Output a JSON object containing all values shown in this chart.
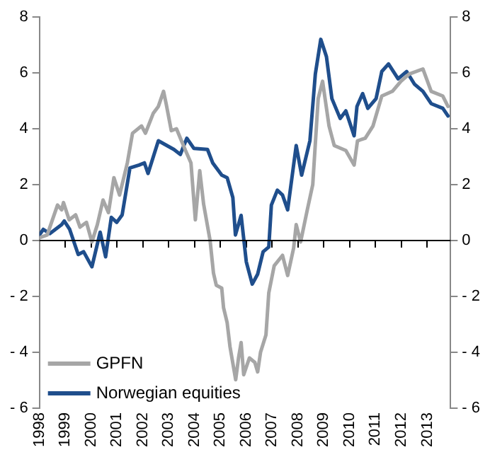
{
  "chart_data": {
    "type": "line",
    "grid": false,
    "legend": "bottom left",
    "marker": "none",
    "line_style": "solid",
    "ref_lines": [
      {
        "axis": "y",
        "value": 0,
        "color": "#000000"
      }
    ],
    "xlim": [
      1998,
      2013.9
    ],
    "xticks": [
      1998,
      1999,
      2000,
      2001,
      2002,
      2003,
      2004,
      2005,
      2006,
      2007,
      2008,
      2009,
      2010,
      2011,
      2012,
      2013
    ],
    "ylim": [
      -6,
      8
    ],
    "yticks": [
      {
        "value": -6,
        "label": "- 6"
      },
      {
        "value": -4,
        "label": "- 4"
      },
      {
        "value": -2,
        "label": "- 2"
      },
      0,
      2,
      4,
      6,
      8
    ],
    "y2lim": [
      -6,
      8
    ],
    "y2ticks": [
      {
        "value": -6,
        "label": "- 6"
      },
      {
        "value": -4,
        "label": "- 4"
      },
      {
        "value": -2,
        "label": "- 2"
      },
      0,
      2,
      4,
      6,
      8
    ],
    "series": [
      {
        "name": "GPFN",
        "color": "#a6a6a6",
        "x": [
          1998.0,
          1998.3,
          1998.7,
          1998.86,
          1998.93,
          1999.15,
          1999.4,
          1999.57,
          1999.82,
          2000.03,
          2000.24,
          2000.46,
          2000.67,
          2000.88,
          2001.1,
          2001.4,
          2001.6,
          2001.95,
          2002.1,
          2002.4,
          2002.6,
          2002.8,
          2002.9,
          2003.1,
          2003.3,
          2003.65,
          2003.86,
          2004.03,
          2004.2,
          2004.35,
          2004.6,
          2004.73,
          2004.84,
          2005.05,
          2005.12,
          2005.26,
          2005.37,
          2005.59,
          2005.7,
          2005.8,
          2005.9,
          2006.12,
          2006.33,
          2006.44,
          2006.55,
          2006.76,
          2006.87,
          2007.08,
          2007.4,
          2007.6,
          2007.83,
          2007.93,
          2008.1,
          2008.36,
          2008.57,
          2008.78,
          2008.95,
          2009.2,
          2009.4,
          2009.85,
          2010.17,
          2010.3,
          2010.6,
          2010.9,
          2011.24,
          2011.65,
          2011.98,
          2012.3,
          2012.83,
          2013.15,
          2013.6,
          2013.8
        ],
        "values": [
          0.1,
          0.2,
          1.27,
          1.1,
          1.36,
          0.74,
          0.92,
          0.48,
          0.65,
          -0.05,
          0.57,
          1.45,
          1.0,
          2.25,
          1.63,
          2.78,
          3.84,
          4.1,
          3.84,
          4.55,
          4.8,
          5.34,
          4.9,
          3.93,
          4.0,
          3.22,
          2.78,
          0.74,
          2.5,
          1.3,
          0.0,
          -1.16,
          -1.6,
          -1.7,
          -2.4,
          -2.94,
          -3.8,
          -4.98,
          -4.2,
          -3.65,
          -4.8,
          -4.2,
          -4.36,
          -4.7,
          -4.0,
          -3.38,
          -1.87,
          -0.9,
          -0.53,
          -1.25,
          -0.27,
          0.57,
          -0.05,
          1.1,
          2.0,
          5.08,
          5.7,
          4.1,
          3.4,
          3.22,
          2.7,
          3.57,
          3.66,
          4.1,
          5.17,
          5.34,
          5.7,
          5.96,
          6.14,
          5.34,
          5.17,
          4.8
        ]
      },
      {
        "name": "Norwegian equities",
        "color": "#1f4e8c",
        "x": [
          1998.0,
          1998.15,
          1998.4,
          1998.86,
          1998.96,
          1999.17,
          1999.5,
          1999.71,
          2000.03,
          2000.35,
          2000.56,
          2000.78,
          2000.99,
          2001.2,
          2001.5,
          2001.85,
          2002.06,
          2002.2,
          2002.6,
          2003.2,
          2003.45,
          2003.7,
          2003.97,
          2004.5,
          2004.7,
          2005.05,
          2005.26,
          2005.48,
          2005.58,
          2005.8,
          2006.0,
          2006.23,
          2006.44,
          2006.65,
          2006.87,
          2006.97,
          2007.2,
          2007.4,
          2007.6,
          2007.93,
          2008.14,
          2008.46,
          2008.67,
          2008.88,
          2009.1,
          2009.31,
          2009.63,
          2009.85,
          2010.17,
          2010.28,
          2010.5,
          2010.7,
          2011.02,
          2011.24,
          2011.5,
          2011.87,
          2012.2,
          2012.5,
          2012.83,
          2013.15,
          2013.6,
          2013.8
        ],
        "values": [
          0.2,
          0.4,
          0.25,
          0.57,
          0.7,
          0.4,
          -0.5,
          -0.4,
          -0.94,
          0.3,
          -0.58,
          0.83,
          0.65,
          0.92,
          2.6,
          2.7,
          2.78,
          2.4,
          3.57,
          3.26,
          3.08,
          3.66,
          3.3,
          3.26,
          2.78,
          2.34,
          2.25,
          1.54,
          0.2,
          0.9,
          -0.76,
          -1.56,
          -1.2,
          -0.4,
          -0.23,
          1.27,
          1.8,
          1.63,
          1.1,
          3.4,
          2.34,
          3.57,
          5.96,
          7.2,
          6.58,
          5.08,
          4.37,
          4.64,
          3.75,
          4.8,
          5.26,
          4.73,
          5.08,
          6.05,
          6.32,
          5.79,
          6.05,
          5.6,
          5.34,
          4.9,
          4.73,
          4.46
        ]
      }
    ]
  }
}
